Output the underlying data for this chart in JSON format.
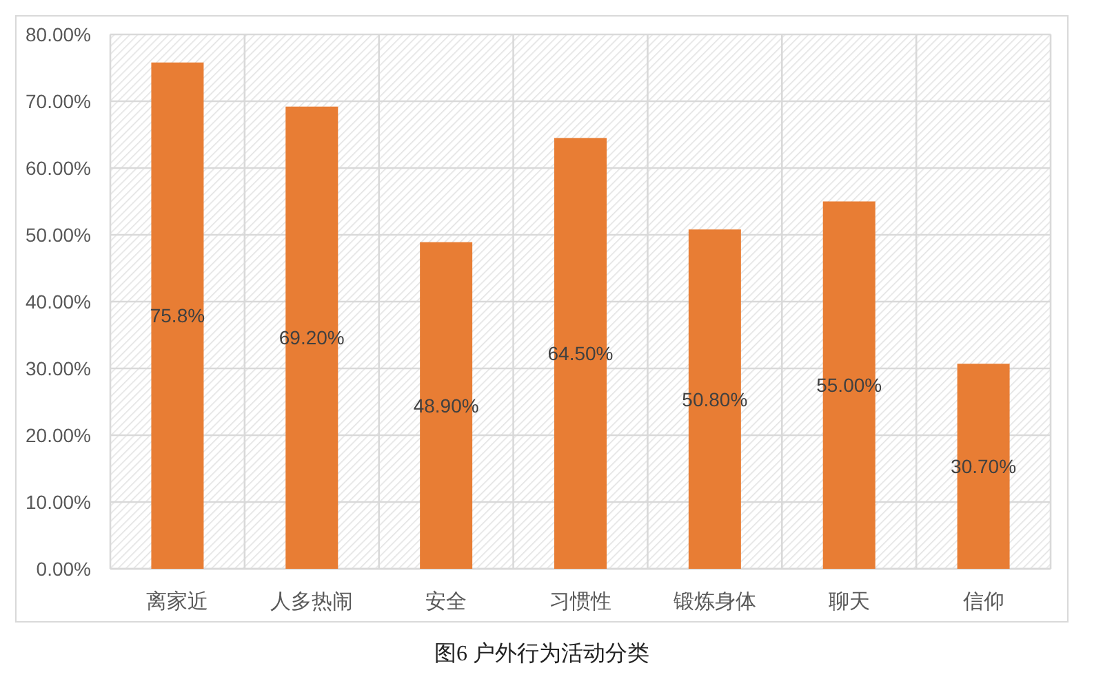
{
  "chart_data": {
    "type": "bar",
    "categories": [
      "离家近",
      "人多热闹",
      "安全",
      "习惯性",
      "锻炼身体",
      "聊天",
      "信仰"
    ],
    "values": [
      75.8,
      69.2,
      48.9,
      64.5,
      50.8,
      55.0,
      30.7
    ],
    "color": "#e87d34",
    "value_labels": [
      "75.8%",
      "69.20%",
      "48.90%",
      "64.50%",
      "50.80%",
      "55.00%",
      "30.70%"
    ],
    "ylim": [
      0,
      80
    ],
    "yticks": [
      {
        "value": 0,
        "label": "0.00%"
      },
      {
        "value": 10,
        "label": "10.00%"
      },
      {
        "value": 20,
        "label": "20.00%"
      },
      {
        "value": 30,
        "label": "30.00%"
      },
      {
        "value": 40,
        "label": "40.00%"
      },
      {
        "value": 50,
        "label": "50.00%"
      },
      {
        "value": 60,
        "label": "60.00%"
      },
      {
        "value": 70,
        "label": "70.00%"
      },
      {
        "value": 80,
        "label": "80.00%"
      }
    ],
    "grid": true,
    "annotations": [
      "图6 户外行为活动分类"
    ]
  }
}
